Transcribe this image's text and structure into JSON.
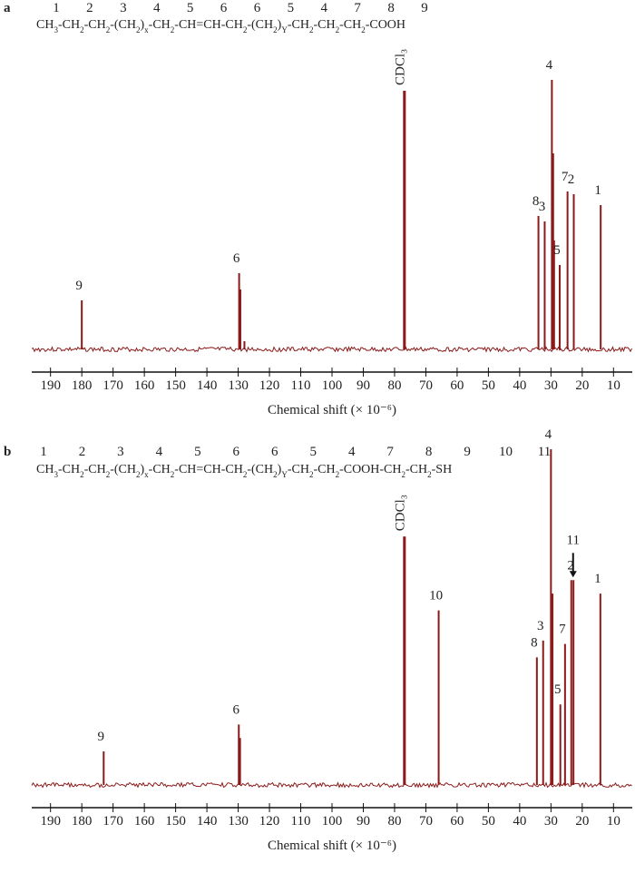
{
  "chart_data": [
    {
      "type": "spectrum",
      "panel": "a",
      "formula": [
        "CH",
        "3",
        "-CH",
        "2",
        "-CH",
        "2",
        "-(CH",
        "2",
        ")",
        "x",
        "-CH",
        "2",
        "-CH=CH-CH",
        "2",
        "-(CH",
        "2",
        ")",
        "Y",
        "-CH",
        "2",
        "-CH",
        "2",
        "-CH",
        "2",
        "-COOH"
      ],
      "atom_labels": [
        "1",
        "2",
        "3",
        "4",
        "5",
        "6",
        "6",
        "5",
        "4",
        "7",
        "8",
        "9"
      ],
      "x": [
        180,
        129.7,
        129.3,
        128,
        77,
        76.7,
        34,
        32,
        29.7,
        29.3,
        29,
        27.2,
        24.7,
        22.7,
        14.1
      ],
      "values": [
        18,
        28,
        22,
        3,
        95,
        95,
        49,
        47,
        99,
        72,
        40,
        31,
        58,
        57,
        53
      ],
      "peak_labels": [
        "9",
        "6",
        null,
        null,
        "CDCl₃",
        null,
        "8",
        "3",
        "4",
        null,
        null,
        "5",
        "7",
        "2",
        "1"
      ],
      "color": "#8b1a1a",
      "xlim": [
        196,
        4
      ],
      "xticks": [
        190,
        180,
        170,
        160,
        150,
        140,
        130,
        120,
        110,
        100,
        90,
        80,
        70,
        60,
        50,
        40,
        30,
        20,
        10
      ],
      "ylim": [
        0,
        100
      ],
      "xlabel": "Chemical shift (× 10⁻⁶)"
    },
    {
      "type": "spectrum",
      "panel": "b",
      "formula": [
        "CH",
        "3",
        "-CH",
        "2",
        "-CH",
        "2",
        "-(CH",
        "2",
        ")",
        "x",
        "-CH",
        "2",
        "-CH=CH-CH",
        "2",
        "-(CH",
        "2",
        ")",
        "Y",
        "-CH",
        "2",
        "-CH",
        "2",
        "-COOH-CH",
        "2",
        "-CH",
        "2",
        "-SH"
      ],
      "atom_labels": [
        "1",
        "2",
        "3",
        "4",
        "5",
        "6",
        "6",
        "5",
        "4",
        "7",
        "8",
        "9",
        "10",
        "11"
      ],
      "x": [
        173,
        129.8,
        129.4,
        77,
        76.7,
        65.9,
        34.5,
        32.5,
        30,
        29.5,
        27,
        25.5,
        23.5,
        22.8,
        14.2
      ],
      "values": [
        10,
        18,
        14,
        74,
        74,
        52,
        38,
        43,
        100,
        57,
        24,
        42,
        61,
        61,
        57
      ],
      "peak_labels": [
        "9",
        "6",
        null,
        "CDCl₃",
        null,
        "10",
        "8",
        "3",
        "4",
        null,
        "5",
        "7",
        "11",
        "2",
        "1"
      ],
      "color": "#8b1a1a",
      "xlim": [
        196,
        4
      ],
      "xticks": [
        190,
        180,
        170,
        160,
        150,
        140,
        130,
        120,
        110,
        100,
        90,
        80,
        70,
        60,
        50,
        40,
        30,
        20,
        10
      ],
      "ylim": [
        0,
        100
      ],
      "xlabel": "Chemical shift (× 10⁻⁶)"
    }
  ]
}
